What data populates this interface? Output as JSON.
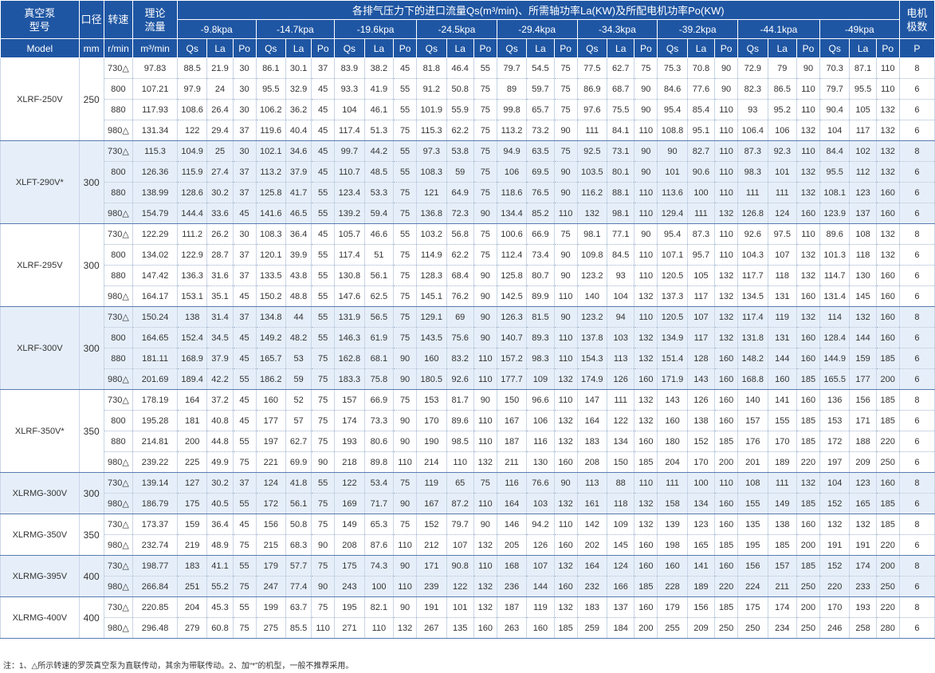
{
  "header": {
    "model_label": [
      "真空泵",
      "型号",
      "Model"
    ],
    "bore_label": [
      "口径",
      "mm"
    ],
    "speed_label": "转速",
    "speed_unit": "r/min",
    "theory_label": [
      "理论",
      "流量"
    ],
    "theory_unit": "m³/min",
    "group_title": "各排气压力下的进口流量Qs(m³/min)、所需轴功率La(KW)及所配电机功率Po(KW)",
    "pressures": [
      "-9.8kpa",
      "-14.7kpa",
      "-19.6kpa",
      "-24.5kpa",
      "-29.4kpa",
      "-34.3kpa",
      "-39.2kpa",
      "-44.1kpa",
      "-49kpa"
    ],
    "sub_cols": [
      "Qs",
      "La",
      "Po"
    ],
    "poles_label": [
      "电机",
      "极数"
    ],
    "poles_unit": "P"
  },
  "groups": [
    {
      "model": "XLRF-250V",
      "bore": "250",
      "shade": false,
      "rows": [
        [
          "730△",
          "97.83",
          "88.5",
          "21.9",
          "30",
          "86.1",
          "30.1",
          "37",
          "83.9",
          "38.2",
          "45",
          "81.8",
          "46.4",
          "55",
          "79.7",
          "54.5",
          "75",
          "77.5",
          "62.7",
          "75",
          "75.3",
          "70.8",
          "90",
          "72.9",
          "79",
          "90",
          "70.3",
          "87.1",
          "110",
          "8"
        ],
        [
          "800",
          "107.21",
          "97.9",
          "24",
          "30",
          "95.5",
          "32.9",
          "45",
          "93.3",
          "41.9",
          "55",
          "91.2",
          "50.8",
          "75",
          "89",
          "59.7",
          "75",
          "86.9",
          "68.7",
          "90",
          "84.6",
          "77.6",
          "90",
          "82.3",
          "86.5",
          "110",
          "79.7",
          "95.5",
          "110",
          "6"
        ],
        [
          "880",
          "117.93",
          "108.6",
          "26.4",
          "30",
          "106.2",
          "36.2",
          "45",
          "104",
          "46.1",
          "55",
          "101.9",
          "55.9",
          "75",
          "99.8",
          "65.7",
          "75",
          "97.6",
          "75.5",
          "90",
          "95.4",
          "85.4",
          "110",
          "93",
          "95.2",
          "110",
          "90.4",
          "105",
          "132",
          "6"
        ],
        [
          "980△",
          "131.34",
          "122",
          "29.4",
          "37",
          "119.6",
          "40.4",
          "45",
          "117.4",
          "51.3",
          "75",
          "115.3",
          "62.2",
          "75",
          "113.2",
          "73.2",
          "90",
          "111",
          "84.1",
          "110",
          "108.8",
          "95.1",
          "110",
          "106.4",
          "106",
          "132",
          "104",
          "117",
          "132",
          "6"
        ]
      ]
    },
    {
      "model": "XLFT-290V*",
      "bore": "300",
      "shade": true,
      "rows": [
        [
          "730△",
          "115.3",
          "104.9",
          "25",
          "30",
          "102.1",
          "34.6",
          "45",
          "99.7",
          "44.2",
          "55",
          "97.3",
          "53.8",
          "75",
          "94.9",
          "63.5",
          "75",
          "92.5",
          "73.1",
          "90",
          "90",
          "82.7",
          "110",
          "87.3",
          "92.3",
          "110",
          "84.4",
          "102",
          "132",
          "8"
        ],
        [
          "800",
          "126.36",
          "115.9",
          "27.4",
          "37",
          "113.2",
          "37.9",
          "45",
          "110.7",
          "48.5",
          "55",
          "108.3",
          "59",
          "75",
          "106",
          "69.5",
          "90",
          "103.5",
          "80.1",
          "90",
          "101",
          "90.6",
          "110",
          "98.3",
          "101",
          "132",
          "95.5",
          "112",
          "132",
          "6"
        ],
        [
          "880",
          "138.99",
          "128.6",
          "30.2",
          "37",
          "125.8",
          "41.7",
          "55",
          "123.4",
          "53.3",
          "75",
          "121",
          "64.9",
          "75",
          "118.6",
          "76.5",
          "90",
          "116.2",
          "88.1",
          "110",
          "113.6",
          "100",
          "110",
          "111",
          "111",
          "132",
          "108.1",
          "123",
          "160",
          "6"
        ],
        [
          "980△",
          "154.79",
          "144.4",
          "33.6",
          "45",
          "141.6",
          "46.5",
          "55",
          "139.2",
          "59.4",
          "75",
          "136.8",
          "72.3",
          "90",
          "134.4",
          "85.2",
          "110",
          "132",
          "98.1",
          "110",
          "129.4",
          "111",
          "132",
          "126.8",
          "124",
          "160",
          "123.9",
          "137",
          "160",
          "6"
        ]
      ]
    },
    {
      "model": "XLRF-295V",
      "bore": "300",
      "shade": false,
      "rows": [
        [
          "730△",
          "122.29",
          "111.2",
          "26.2",
          "30",
          "108.3",
          "36.4",
          "45",
          "105.7",
          "46.6",
          "55",
          "103.2",
          "56.8",
          "75",
          "100.6",
          "66.9",
          "75",
          "98.1",
          "77.1",
          "90",
          "95.4",
          "87.3",
          "110",
          "92.6",
          "97.5",
          "110",
          "89.6",
          "108",
          "132",
          "8"
        ],
        [
          "800",
          "134.02",
          "122.9",
          "28.7",
          "37",
          "120.1",
          "39.9",
          "55",
          "117.4",
          "51",
          "75",
          "114.9",
          "62.2",
          "75",
          "112.4",
          "73.4",
          "90",
          "109.8",
          "84.5",
          "110",
          "107.1",
          "95.7",
          "110",
          "104.3",
          "107",
          "132",
          "101.3",
          "118",
          "132",
          "6"
        ],
        [
          "880",
          "147.42",
          "136.3",
          "31.6",
          "37",
          "133.5",
          "43.8",
          "55",
          "130.8",
          "56.1",
          "75",
          "128.3",
          "68.4",
          "90",
          "125.8",
          "80.7",
          "90",
          "123.2",
          "93",
          "110",
          "120.5",
          "105",
          "132",
          "117.7",
          "118",
          "132",
          "114.7",
          "130",
          "160",
          "6"
        ],
        [
          "980△",
          "164.17",
          "153.1",
          "35.1",
          "45",
          "150.2",
          "48.8",
          "55",
          "147.6",
          "62.5",
          "75",
          "145.1",
          "76.2",
          "90",
          "142.5",
          "89.9",
          "110",
          "140",
          "104",
          "132",
          "137.3",
          "117",
          "132",
          "134.5",
          "131",
          "160",
          "131.4",
          "145",
          "160",
          "6"
        ]
      ]
    },
    {
      "model": "XLRF-300V",
      "bore": "300",
      "shade": true,
      "rows": [
        [
          "730△",
          "150.24",
          "138",
          "31.4",
          "37",
          "134.8",
          "44",
          "55",
          "131.9",
          "56.5",
          "75",
          "129.1",
          "69",
          "90",
          "126.3",
          "81.5",
          "90",
          "123.2",
          "94",
          "110",
          "120.5",
          "107",
          "132",
          "117.4",
          "119",
          "132",
          "114",
          "132",
          "160",
          "8"
        ],
        [
          "800",
          "164.65",
          "152.4",
          "34.5",
          "45",
          "149.2",
          "48.2",
          "55",
          "146.3",
          "61.9",
          "75",
          "143.5",
          "75.6",
          "90",
          "140.7",
          "89.3",
          "110",
          "137.8",
          "103",
          "132",
          "134.9",
          "117",
          "132",
          "131.8",
          "131",
          "160",
          "128.4",
          "144",
          "160",
          "6"
        ],
        [
          "880",
          "181.11",
          "168.9",
          "37.9",
          "45",
          "165.7",
          "53",
          "75",
          "162.8",
          "68.1",
          "90",
          "160",
          "83.2",
          "110",
          "157.2",
          "98.3",
          "110",
          "154.3",
          "113",
          "132",
          "151.4",
          "128",
          "160",
          "148.2",
          "144",
          "160",
          "144.9",
          "159",
          "185",
          "6"
        ],
        [
          "980△",
          "201.69",
          "189.4",
          "42.2",
          "55",
          "186.2",
          "59",
          "75",
          "183.3",
          "75.8",
          "90",
          "180.5",
          "92.6",
          "110",
          "177.7",
          "109",
          "132",
          "174.9",
          "126",
          "160",
          "171.9",
          "143",
          "160",
          "168.8",
          "160",
          "185",
          "165.5",
          "177",
          "200",
          "6"
        ]
      ]
    },
    {
      "model": "XLRF-350V*",
      "bore": "350",
      "shade": false,
      "rows": [
        [
          "730△",
          "178.19",
          "164",
          "37.2",
          "45",
          "160",
          "52",
          "75",
          "157",
          "66.9",
          "75",
          "153",
          "81.7",
          "90",
          "150",
          "96.6",
          "110",
          "147",
          "111",
          "132",
          "143",
          "126",
          "160",
          "140",
          "141",
          "160",
          "136",
          "156",
          "185",
          "8"
        ],
        [
          "800",
          "195.28",
          "181",
          "40.8",
          "45",
          "177",
          "57",
          "75",
          "174",
          "73.3",
          "90",
          "170",
          "89.6",
          "110",
          "167",
          "106",
          "132",
          "164",
          "122",
          "132",
          "160",
          "138",
          "160",
          "157",
          "155",
          "185",
          "153",
          "171",
          "185",
          "6"
        ],
        [
          "880",
          "214.81",
          "200",
          "44.8",
          "55",
          "197",
          "62.7",
          "75",
          "193",
          "80.6",
          "90",
          "190",
          "98.5",
          "110",
          "187",
          "116",
          "132",
          "183",
          "134",
          "160",
          "180",
          "152",
          "185",
          "176",
          "170",
          "185",
          "172",
          "188",
          "220",
          "6"
        ],
        [
          "980△",
          "239.22",
          "225",
          "49.9",
          "75",
          "221",
          "69.9",
          "90",
          "218",
          "89.8",
          "110",
          "214",
          "110",
          "132",
          "211",
          "130",
          "160",
          "208",
          "150",
          "185",
          "204",
          "170",
          "200",
          "201",
          "189",
          "220",
          "197",
          "209",
          "250",
          "6"
        ]
      ]
    },
    {
      "model": "XLRMG-300V",
      "bore": "300",
      "shade": true,
      "rows": [
        [
          "730△",
          "139.14",
          "127",
          "30.2",
          "37",
          "124",
          "41.8",
          "55",
          "122",
          "53.4",
          "75",
          "119",
          "65",
          "75",
          "116",
          "76.6",
          "90",
          "113",
          "88",
          "110",
          "111",
          "100",
          "110",
          "108",
          "111",
          "132",
          "104",
          "123",
          "160",
          "8"
        ],
        [
          "980△",
          "186.79",
          "175",
          "40.5",
          "55",
          "172",
          "56.1",
          "75",
          "169",
          "71.7",
          "90",
          "167",
          "87.2",
          "110",
          "164",
          "103",
          "132",
          "161",
          "118",
          "132",
          "158",
          "134",
          "160",
          "155",
          "149",
          "185",
          "152",
          "165",
          "185",
          "6"
        ]
      ]
    },
    {
      "model": "XLRMG-350V",
      "bore": "350",
      "shade": false,
      "rows": [
        [
          "730△",
          "173.37",
          "159",
          "36.4",
          "45",
          "156",
          "50.8",
          "75",
          "149",
          "65.3",
          "75",
          "152",
          "79.7",
          "90",
          "146",
          "94.2",
          "110",
          "142",
          "109",
          "132",
          "139",
          "123",
          "160",
          "135",
          "138",
          "160",
          "132",
          "132",
          "185",
          "8"
        ],
        [
          "980△",
          "232.74",
          "219",
          "48.9",
          "75",
          "215",
          "68.3",
          "90",
          "208",
          "87.6",
          "110",
          "212",
          "107",
          "132",
          "205",
          "126",
          "160",
          "202",
          "145",
          "160",
          "198",
          "165",
          "185",
          "195",
          "185",
          "200",
          "191",
          "191",
          "220",
          "6"
        ]
      ]
    },
    {
      "model": "XLRMG-395V",
      "bore": "400",
      "shade": true,
      "rows": [
        [
          "730△",
          "198.77",
          "183",
          "41.1",
          "55",
          "179",
          "57.7",
          "75",
          "175",
          "74.3",
          "90",
          "171",
          "90.8",
          "110",
          "168",
          "107",
          "132",
          "164",
          "124",
          "160",
          "160",
          "141",
          "160",
          "156",
          "157",
          "185",
          "152",
          "174",
          "200",
          "8"
        ],
        [
          "980△",
          "266.84",
          "251",
          "55.2",
          "75",
          "247",
          "77.4",
          "90",
          "243",
          "100",
          "110",
          "239",
          "122",
          "132",
          "236",
          "144",
          "160",
          "232",
          "166",
          "185",
          "228",
          "189",
          "220",
          "224",
          "211",
          "250",
          "220",
          "233",
          "250",
          "6"
        ]
      ]
    },
    {
      "model": "XLRMG-400V",
      "bore": "400",
      "shade": false,
      "rows": [
        [
          "730△",
          "220.85",
          "204",
          "45.3",
          "55",
          "199",
          "63.7",
          "75",
          "195",
          "82.1",
          "90",
          "191",
          "101",
          "132",
          "187",
          "119",
          "132",
          "183",
          "137",
          "160",
          "179",
          "156",
          "185",
          "175",
          "174",
          "200",
          "170",
          "193",
          "220",
          "8"
        ],
        [
          "980△",
          "296.48",
          "279",
          "60.8",
          "75",
          "275",
          "85.5",
          "110",
          "271",
          "110",
          "132",
          "267",
          "135",
          "160",
          "263",
          "160",
          "185",
          "259",
          "184",
          "200",
          "255",
          "209",
          "250",
          "250",
          "234",
          "250",
          "246",
          "258",
          "280",
          "6"
        ]
      ]
    }
  ],
  "note": "注：1、△所示转速的罗茨真空泵为直联传动，其余为带联传动。2、加“*”的机型，一般不推荐采用。"
}
